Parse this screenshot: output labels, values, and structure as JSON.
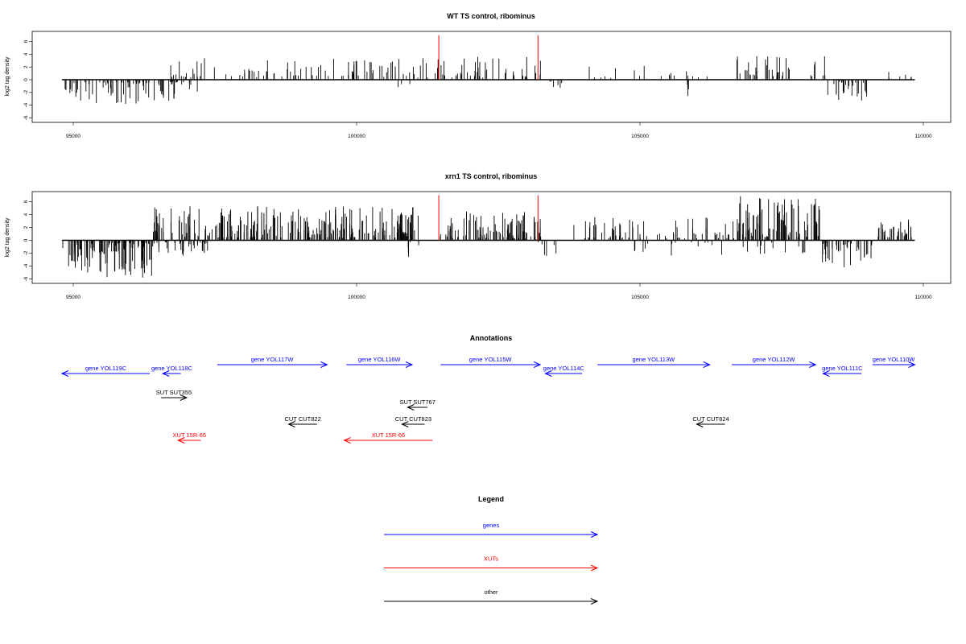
{
  "chart_data": [
    {
      "type": "bar",
      "title": "WT TS control, ribominus",
      "ylabel": "log2 tag density",
      "xlabel": "",
      "xlim": [
        94900,
        110450
      ],
      "ylim": [
        -6.6,
        7.2
      ],
      "xticks": [
        95000,
        100000,
        105000,
        110000
      ],
      "yticks": [
        -6,
        -4,
        -2,
        0,
        2,
        4,
        6
      ],
      "grid": false,
      "markers": [
        {
          "x": 101450,
          "color": "#ff0000"
        },
        {
          "x": 103200,
          "color": "#ff0000"
        }
      ],
      "segments": [
        {
          "start": 94800,
          "end": 96900,
          "min": -3.8,
          "max": -0.3,
          "density": 0.55
        },
        {
          "start": 96700,
          "end": 97400,
          "min": 0.4,
          "max": 3.4,
          "density": 0.35
        },
        {
          "start": 96800,
          "end": 97200,
          "min": -2.4,
          "max": -0.3,
          "density": 0.25
        },
        {
          "start": 97400,
          "end": 98300,
          "min": 0.4,
          "max": 2.4,
          "density": 0.2
        },
        {
          "start": 98300,
          "end": 101500,
          "min": 0.3,
          "max": 3.4,
          "density": 0.3
        },
        {
          "start": 100700,
          "end": 101000,
          "min": -1.2,
          "max": -0.2,
          "density": 0.15
        },
        {
          "start": 101500,
          "end": 103250,
          "min": 0.3,
          "max": 3.6,
          "density": 0.35
        },
        {
          "start": 103200,
          "end": 103800,
          "min": -1.6,
          "max": -0.2,
          "density": 0.15
        },
        {
          "start": 104000,
          "end": 106300,
          "min": 0.3,
          "max": 2.4,
          "density": 0.12
        },
        {
          "start": 105800,
          "end": 105900,
          "min": -3.2,
          "max": -0.5,
          "density": 0.5
        },
        {
          "start": 106700,
          "end": 108300,
          "min": 0.4,
          "max": 4.0,
          "density": 0.35
        },
        {
          "start": 108300,
          "end": 109000,
          "min": -3.4,
          "max": -0.3,
          "density": 0.5
        },
        {
          "start": 109200,
          "end": 109800,
          "min": 0.3,
          "max": 2.0,
          "density": 0.15
        }
      ],
      "baseline": {
        "start": 94800,
        "end": 109850
      }
    },
    {
      "type": "bar",
      "title": "xrn1 TS control, ribominus",
      "ylabel": "log2 tag density",
      "xlabel": "",
      "xlim": [
        94900,
        110450
      ],
      "ylim": [
        -6.6,
        7.2
      ],
      "xticks": [
        95000,
        100000,
        105000,
        110000
      ],
      "yticks": [
        -6,
        -4,
        -2,
        0,
        2,
        4,
        6
      ],
      "grid": false,
      "markers": [
        {
          "x": 101450,
          "color": "#ff0000"
        },
        {
          "x": 103200,
          "color": "#ff0000"
        }
      ],
      "segments": [
        {
          "start": 94800,
          "end": 96400,
          "min": -5.8,
          "max": -0.4,
          "density": 0.9
        },
        {
          "start": 96400,
          "end": 97400,
          "min": -2.5,
          "max": -0.3,
          "density": 0.5
        },
        {
          "start": 96400,
          "end": 97500,
          "min": 0.5,
          "max": 5.8,
          "density": 0.6
        },
        {
          "start": 97500,
          "end": 101100,
          "min": 0.4,
          "max": 5.5,
          "density": 0.85
        },
        {
          "start": 100900,
          "end": 101200,
          "min": -2.8,
          "max": -0.3,
          "density": 0.3
        },
        {
          "start": 101450,
          "end": 103250,
          "min": 0.3,
          "max": 4.5,
          "density": 0.8
        },
        {
          "start": 103200,
          "end": 103600,
          "min": -2.8,
          "max": -0.3,
          "density": 0.2
        },
        {
          "start": 103700,
          "end": 106700,
          "min": 0.3,
          "max": 3.6,
          "density": 0.35
        },
        {
          "start": 104800,
          "end": 106500,
          "min": -2.5,
          "max": -0.3,
          "density": 0.12
        },
        {
          "start": 106700,
          "end": 108200,
          "min": 0.5,
          "max": 7.0,
          "density": 0.9
        },
        {
          "start": 106800,
          "end": 108000,
          "min": -2.5,
          "max": -0.3,
          "density": 0.15
        },
        {
          "start": 108200,
          "end": 109100,
          "min": -4.2,
          "max": -0.3,
          "density": 0.6
        },
        {
          "start": 109200,
          "end": 109850,
          "min": 0.4,
          "max": 3.4,
          "density": 0.7
        }
      ],
      "baseline": {
        "start": 94800,
        "end": 109850
      }
    }
  ],
  "annotations": {
    "title": "Annotations",
    "items": [
      {
        "label": "gene YOL119C",
        "type": "gene",
        "strand": "-",
        "start": 94800,
        "end": 96350,
        "row": 0
      },
      {
        "label": "gene YOL118C",
        "type": "gene",
        "strand": "-",
        "start": 96580,
        "end": 96900,
        "row": 0
      },
      {
        "label": "gene YOL117W",
        "type": "gene",
        "strand": "+",
        "start": 97540,
        "end": 99480,
        "row": -1
      },
      {
        "label": "gene YOL116W",
        "type": "gene",
        "strand": "+",
        "start": 99820,
        "end": 100980,
        "row": -1
      },
      {
        "label": "gene YOL115W",
        "type": "gene",
        "strand": "+",
        "start": 101480,
        "end": 103240,
        "row": -1
      },
      {
        "label": "gene YOL114C",
        "type": "gene",
        "strand": "-",
        "start": 103330,
        "end": 103980,
        "row": 0
      },
      {
        "label": "gene YOL113W",
        "type": "gene",
        "strand": "+",
        "start": 104250,
        "end": 106230,
        "row": -1
      },
      {
        "label": "gene YOL112W",
        "type": "gene",
        "strand": "+",
        "start": 106620,
        "end": 108100,
        "row": -1
      },
      {
        "label": "gene YOL111C",
        "type": "gene",
        "strand": "-",
        "start": 108230,
        "end": 108910,
        "row": 0
      },
      {
        "label": "gene YOL110W",
        "type": "gene",
        "strand": "+",
        "start": 109100,
        "end": 109850,
        "row": -1
      },
      {
        "label": "SUT SUT355",
        "type": "other",
        "strand": "+",
        "start": 96550,
        "end": 97000,
        "row": 1
      },
      {
        "label": "SUT SUT767",
        "type": "other",
        "strand": "-",
        "start": 100900,
        "end": 101250,
        "row": 2
      },
      {
        "label": "CUT CUT822",
        "type": "other",
        "strand": "-",
        "start": 98800,
        "end": 99300,
        "row": 3
      },
      {
        "label": "CUT CUT823",
        "type": "other",
        "strand": "-",
        "start": 100800,
        "end": 101200,
        "row": 3
      },
      {
        "label": "CUT CUT824",
        "type": "other",
        "strand": "-",
        "start": 106000,
        "end": 106500,
        "row": 3
      },
      {
        "label": "XUT 15R-65",
        "type": "XUT",
        "strand": "-",
        "start": 96850,
        "end": 97250,
        "row": 4
      },
      {
        "label": "XUT 15R-66",
        "type": "XUT",
        "strand": "-",
        "start": 99780,
        "end": 101340,
        "row": 4
      }
    ]
  },
  "legend": {
    "title": "Legend",
    "entries": [
      {
        "label": "genes",
        "color": "#0000ff"
      },
      {
        "label": "XUTs",
        "color": "#ff0000"
      },
      {
        "label": "other",
        "color": "#000000"
      }
    ]
  },
  "colors": {
    "gene": "#0000ff",
    "XUT": "#ff0000",
    "other": "#000000",
    "signal": "#000000",
    "marker": "#ff0000"
  }
}
